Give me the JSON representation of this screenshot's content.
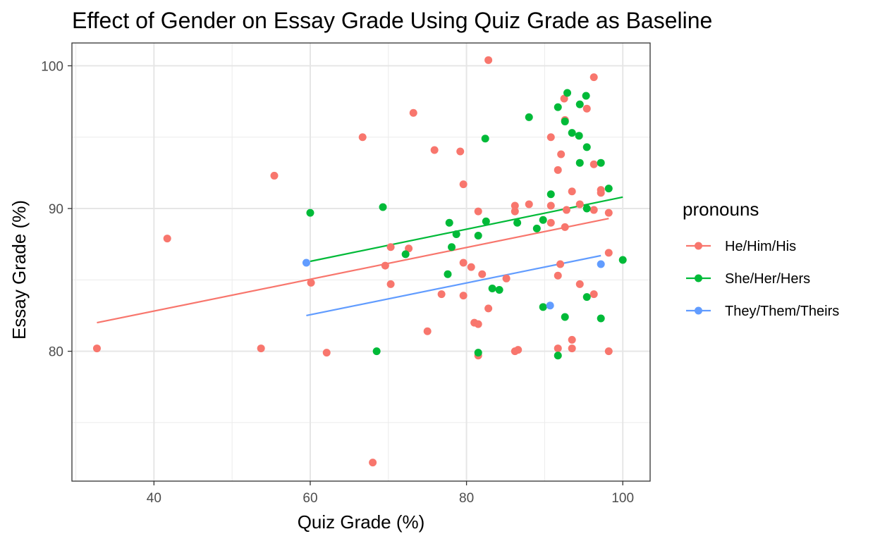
{
  "chart_data": {
    "type": "scatter",
    "title": "Effect of Gender on Essay Grade Using Quiz Grade as Baseline",
    "xlabel": "Quiz Grade (%)",
    "ylabel": "Essay Grade (%)",
    "xlim": [
      29.5,
      103.5
    ],
    "ylim": [
      70.9,
      101.6
    ],
    "xticks": [
      40,
      60,
      80,
      100
    ],
    "yticks": [
      80,
      90,
      100
    ],
    "xticks_minor": [
      30,
      50,
      70,
      90
    ],
    "yticks_minor": [
      75,
      85,
      95
    ],
    "grid": true,
    "legend": {
      "title": "pronouns",
      "position": "right"
    },
    "series": [
      {
        "name": "He/Him/His",
        "color": "#F8766D",
        "fit": [
          [
            32.7,
            82.0
          ],
          [
            98.2,
            89.3
          ]
        ],
        "points": [
          [
            32.7,
            80.2
          ],
          [
            41.7,
            87.9
          ],
          [
            53.7,
            80.2
          ],
          [
            55.4,
            92.3
          ],
          [
            60.1,
            84.8
          ],
          [
            62.1,
            79.9
          ],
          [
            66.7,
            95.0
          ],
          [
            68.0,
            72.2
          ],
          [
            69.6,
            86.0
          ],
          [
            70.3,
            87.3
          ],
          [
            70.3,
            84.7
          ],
          [
            72.6,
            87.2
          ],
          [
            73.2,
            96.7
          ],
          [
            75.0,
            81.4
          ],
          [
            75.9,
            94.1
          ],
          [
            76.8,
            84.0
          ],
          [
            79.2,
            94.0
          ],
          [
            79.6,
            91.7
          ],
          [
            79.6,
            86.2
          ],
          [
            79.6,
            83.9
          ],
          [
            80.6,
            85.9
          ],
          [
            81.0,
            82.0
          ],
          [
            81.5,
            89.8
          ],
          [
            81.5,
            81.9
          ],
          [
            81.5,
            79.7
          ],
          [
            82.0,
            85.4
          ],
          [
            82.8,
            100.4
          ],
          [
            82.8,
            83.0
          ],
          [
            85.1,
            85.1
          ],
          [
            86.2,
            90.2
          ],
          [
            86.2,
            89.8
          ],
          [
            86.2,
            80.0
          ],
          [
            86.6,
            80.1
          ],
          [
            88.0,
            90.3
          ],
          [
            90.8,
            95.0
          ],
          [
            90.8,
            90.2
          ],
          [
            90.8,
            89.0
          ],
          [
            91.7,
            92.7
          ],
          [
            91.7,
            85.3
          ],
          [
            91.7,
            80.2
          ],
          [
            92.0,
            86.1
          ],
          [
            92.1,
            93.8
          ],
          [
            92.5,
            97.7
          ],
          [
            92.6,
            96.2
          ],
          [
            92.6,
            88.7
          ],
          [
            92.8,
            89.9
          ],
          [
            93.5,
            91.2
          ],
          [
            93.5,
            80.8
          ],
          [
            93.5,
            80.2
          ],
          [
            94.5,
            90.3
          ],
          [
            94.5,
            84.7
          ],
          [
            95.4,
            97.0
          ],
          [
            96.3,
            99.2
          ],
          [
            96.3,
            93.1
          ],
          [
            96.3,
            89.9
          ],
          [
            96.3,
            84.0
          ],
          [
            97.2,
            91.3
          ],
          [
            97.2,
            91.1
          ],
          [
            98.2,
            89.7
          ],
          [
            98.2,
            86.9
          ],
          [
            98.2,
            80.0
          ]
        ]
      },
      {
        "name": "She/Her/Hers",
        "color": "#00BA38",
        "fit": [
          [
            60.0,
            86.3
          ],
          [
            100.0,
            90.8
          ]
        ],
        "points": [
          [
            60.0,
            89.7
          ],
          [
            68.5,
            80.0
          ],
          [
            69.3,
            90.1
          ],
          [
            72.2,
            86.8
          ],
          [
            77.6,
            85.4
          ],
          [
            77.8,
            89.0
          ],
          [
            78.1,
            87.3
          ],
          [
            78.7,
            88.2
          ],
          [
            81.5,
            88.1
          ],
          [
            81.5,
            79.9
          ],
          [
            82.4,
            94.9
          ],
          [
            82.5,
            89.1
          ],
          [
            83.3,
            84.4
          ],
          [
            84.2,
            84.3
          ],
          [
            86.5,
            89.0
          ],
          [
            88.0,
            96.4
          ],
          [
            89.0,
            88.6
          ],
          [
            89.8,
            89.2
          ],
          [
            89.8,
            83.1
          ],
          [
            90.8,
            91.0
          ],
          [
            91.7,
            97.1
          ],
          [
            91.7,
            79.7
          ],
          [
            92.6,
            96.1
          ],
          [
            92.6,
            82.4
          ],
          [
            92.9,
            98.1
          ],
          [
            93.5,
            95.3
          ],
          [
            94.4,
            95.1
          ],
          [
            94.5,
            97.3
          ],
          [
            94.5,
            93.2
          ],
          [
            95.3,
            97.9
          ],
          [
            95.4,
            94.3
          ],
          [
            95.4,
            90.0
          ],
          [
            95.4,
            83.8
          ],
          [
            97.2,
            93.2
          ],
          [
            97.2,
            82.3
          ],
          [
            98.2,
            91.4
          ],
          [
            100.0,
            86.4
          ]
        ]
      },
      {
        "name": "They/Them/Theirs",
        "color": "#619CFF",
        "fit": [
          [
            59.5,
            82.5
          ],
          [
            97.2,
            86.7
          ]
        ],
        "points": [
          [
            59.5,
            86.2
          ],
          [
            90.7,
            83.2
          ],
          [
            97.2,
            86.1
          ]
        ]
      }
    ]
  }
}
